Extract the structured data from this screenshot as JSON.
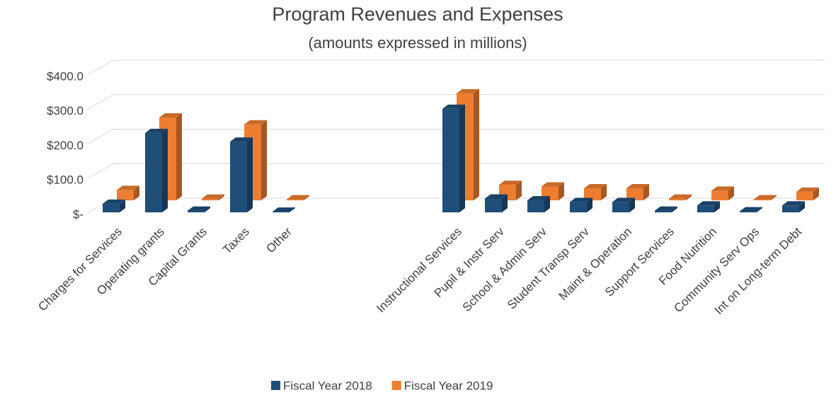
{
  "chart_data": {
    "type": "bar3d",
    "title": "Program Revenues and Expenses",
    "subtitle": "(amounts expressed in millions)",
    "categories": [
      "Charges for Services",
      "Operating grants",
      "Capital Grants",
      "Taxes",
      "Other",
      null,
      null,
      null,
      "Instructional Services",
      "Pupil & Instr Serv",
      "School & Admin Serv",
      "Student Transp Serv",
      "Maint & Operation",
      "Support Services",
      "Food Nutrition",
      "Community Serv Ops",
      "Int on Long-term Debt"
    ],
    "series": [
      {
        "name": "Fiscal Year 2018",
        "color": "#1f4e79",
        "values": [
          25,
          230,
          5,
          205,
          2,
          null,
          null,
          null,
          300,
          40,
          35,
          30,
          30,
          5,
          20,
          3,
          20
        ]
      },
      {
        "name": "Fiscal Year 2019",
        "color": "#ed7d31",
        "values": [
          30,
          240,
          5,
          220,
          3,
          null,
          null,
          null,
          310,
          45,
          40,
          35,
          35,
          5,
          28,
          3,
          25
        ]
      }
    ],
    "ylim": [
      0,
      400
    ],
    "yticks": [
      {
        "value": 0,
        "label": "$-"
      },
      {
        "value": 100,
        "label": "$100.0"
      },
      {
        "value": 200,
        "label": "$200.0"
      },
      {
        "value": 300,
        "label": "$300.0"
      },
      {
        "value": 400,
        "label": "$400.0"
      }
    ],
    "grid": true,
    "legend": "bottom"
  }
}
